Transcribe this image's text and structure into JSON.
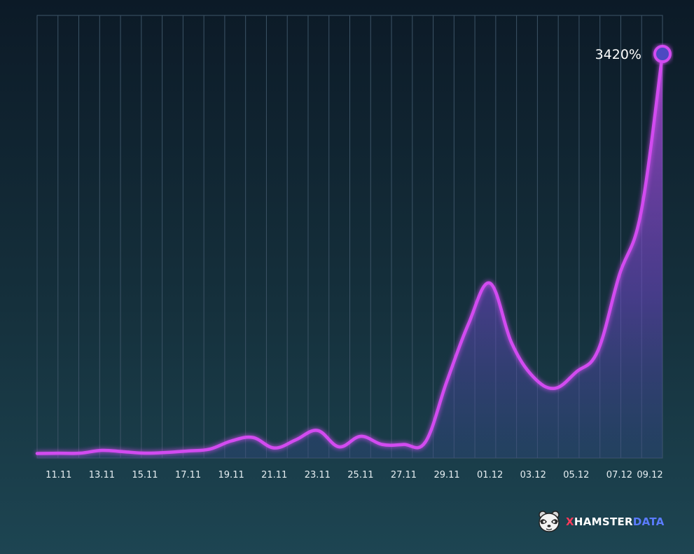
{
  "chart_data": {
    "type": "area",
    "x_labels": [
      "11.11",
      "13.11",
      "15.11",
      "17.11",
      "19.11",
      "21.11",
      "23.11",
      "25.11",
      "27.11",
      "29.11",
      "01.12",
      "03.12",
      "05.12",
      "07.12",
      "09.12"
    ],
    "dates": [
      "10.11",
      "11.11",
      "12.11",
      "13.11",
      "14.11",
      "15.11",
      "16.11",
      "17.11",
      "18.11",
      "19.11",
      "20.11",
      "21.11",
      "22.11",
      "23.11",
      "24.11",
      "25.11",
      "26.11",
      "27.11",
      "28.11",
      "29.11",
      "30.11",
      "01.12",
      "02.12",
      "03.12",
      "04.12",
      "05.12",
      "06.12",
      "07.12",
      "08.12",
      "09.12"
    ],
    "values": [
      3,
      5,
      6,
      30,
      18,
      6,
      12,
      25,
      40,
      110,
      140,
      50,
      120,
      200,
      60,
      150,
      80,
      80,
      100,
      620,
      1110,
      1460,
      950,
      660,
      560,
      700,
      880,
      1530,
      2060,
      3420
    ],
    "unit": "%",
    "ylim": [
      0,
      3600
    ],
    "grid": "vertical",
    "annotation": {
      "label": "3420%",
      "at": "09.12"
    },
    "colors": {
      "line": "#d24bf0",
      "marker_fill": "#4e49c2",
      "grid": "#3d5467"
    }
  },
  "brand": {
    "x": "X",
    "hamster": "HAMSTER",
    "data": "DATA",
    "logo_icon": "hamster-face-icon"
  }
}
